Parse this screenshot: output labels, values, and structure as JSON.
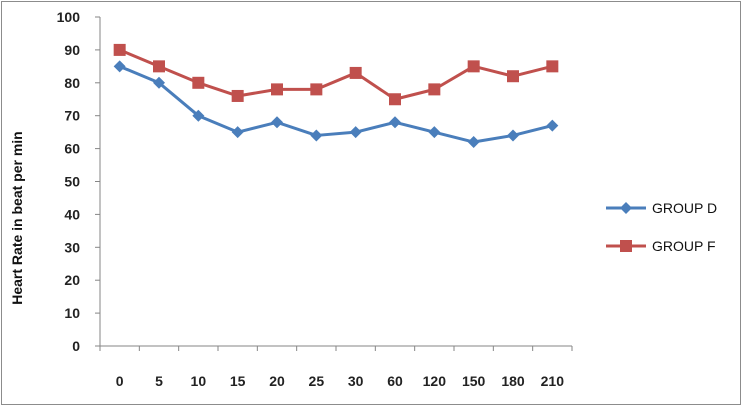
{
  "chart_data": {
    "type": "line",
    "title": "",
    "xlabel": "",
    "ylabel": "Heart Rate in beat per min",
    "categories": [
      "0",
      "5",
      "10",
      "15",
      "20",
      "25",
      "30",
      "60",
      "120",
      "150",
      "180",
      "210"
    ],
    "ylim": [
      0,
      100
    ],
    "yticks": [
      0,
      10,
      20,
      30,
      40,
      50,
      60,
      70,
      80,
      90,
      100
    ],
    "grid": false,
    "legend_position": "right",
    "series": [
      {
        "name": "GROUP D",
        "color": "#4a7ebb",
        "marker": "diamond",
        "values": [
          85,
          80,
          70,
          65,
          68,
          64,
          65,
          68,
          65,
          62,
          64,
          67
        ]
      },
      {
        "name": "GROUP F",
        "color": "#c0504d",
        "marker": "square",
        "values": [
          90,
          85,
          80,
          76,
          78,
          78,
          83,
          75,
          78,
          85,
          82,
          85
        ]
      }
    ]
  }
}
